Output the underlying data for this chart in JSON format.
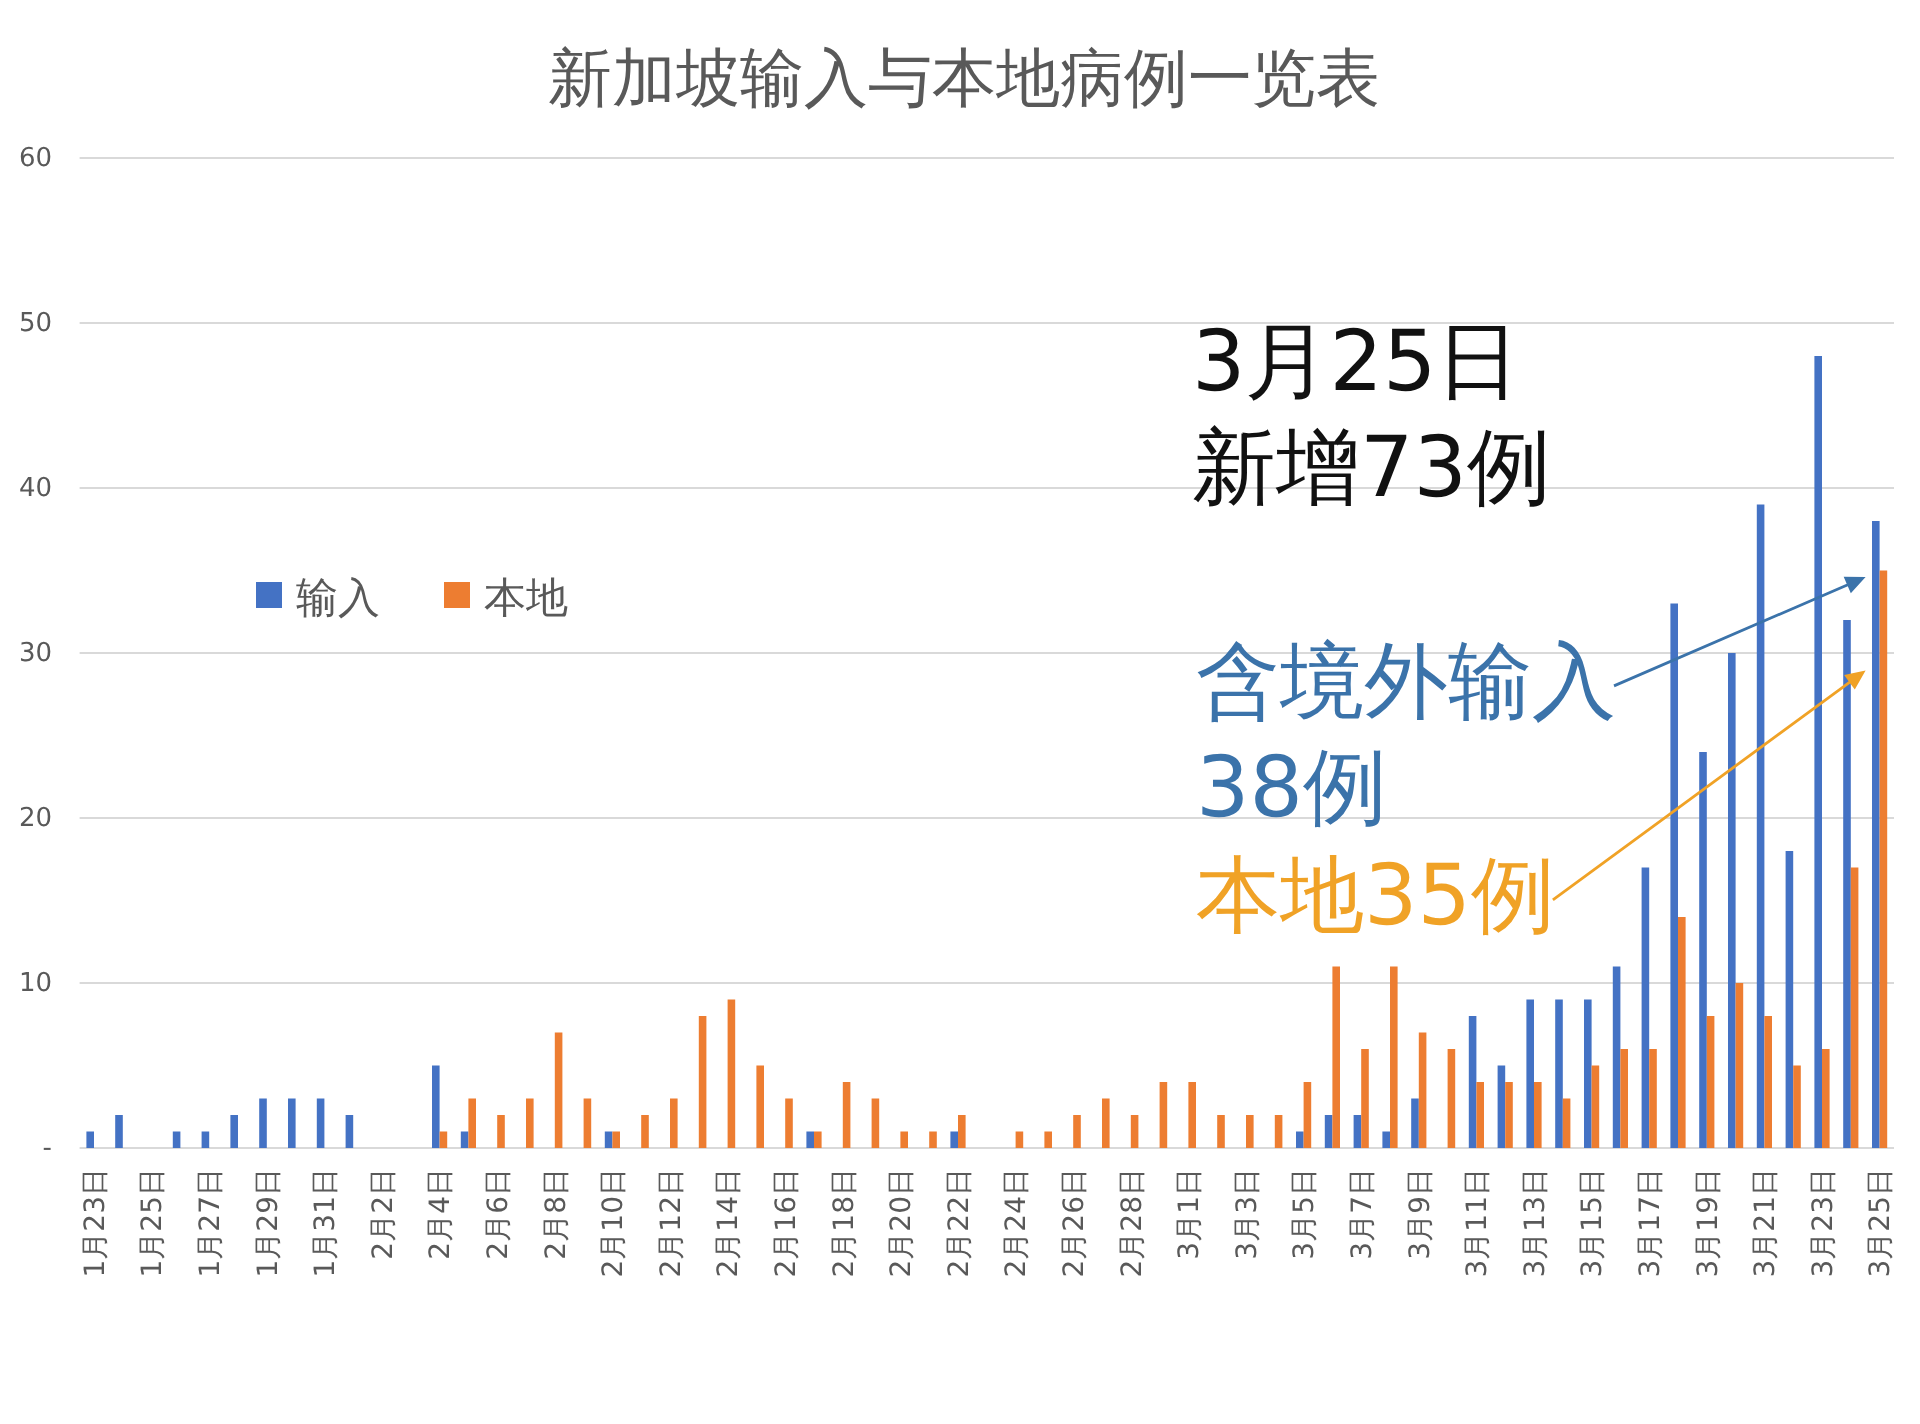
{
  "chart_data": {
    "type": "bar",
    "title": "新加坡输入与本地病例一览表",
    "categories": [
      "1月23日",
      null,
      "1月25日",
      null,
      "1月27日",
      null,
      "1月29日",
      null,
      "1月31日",
      null,
      "2月2日",
      null,
      "2月4日",
      null,
      "2月6日",
      null,
      "2月8日",
      null,
      "2月10日",
      null,
      "2月12日",
      null,
      "2月14日",
      null,
      "2月16日",
      null,
      "2月18日",
      null,
      "2月20日",
      null,
      "2月22日",
      null,
      "2月24日",
      null,
      "2月26日",
      null,
      "2月28日",
      null,
      "3月1日",
      null,
      "3月3日",
      null,
      "3月5日",
      null,
      "3月7日",
      null,
      "3月9日",
      null,
      "3月11日",
      null,
      "3月13日",
      null,
      "3月15日",
      null,
      "3月17日",
      null,
      "3月19日",
      null,
      "3月21日",
      null,
      "3月23日",
      null,
      "3月25日"
    ],
    "series": [
      {
        "name": "输入",
        "color": "#4472c4",
        "values": [
          1,
          2,
          0,
          1,
          1,
          2,
          3,
          3,
          3,
          2,
          0,
          0,
          5,
          1,
          0,
          0,
          0,
          0,
          1,
          0,
          0,
          0,
          0,
          0,
          0,
          1,
          0,
          0,
          0,
          0,
          1,
          0,
          0,
          0,
          0,
          0,
          0,
          0,
          0,
          0,
          0,
          0,
          1,
          2,
          2,
          1,
          3,
          0,
          8,
          5,
          9,
          9,
          9,
          11,
          17,
          33,
          24,
          30,
          39,
          18,
          48,
          32,
          38
        ]
      },
      {
        "name": "本地",
        "color": "#ed7d31",
        "values": [
          0,
          0,
          0,
          0,
          0,
          0,
          0,
          0,
          0,
          0,
          0,
          0,
          1,
          3,
          2,
          3,
          7,
          3,
          1,
          2,
          3,
          8,
          9,
          5,
          3,
          1,
          4,
          3,
          1,
          1,
          2,
          0,
          1,
          1,
          2,
          3,
          2,
          4,
          4,
          2,
          2,
          2,
          4,
          11,
          6,
          11,
          7,
          6,
          4,
          4,
          4,
          3,
          5,
          6,
          6,
          14,
          8,
          10,
          8,
          5,
          6,
          17,
          35
        ]
      }
    ],
    "ylim": [
      0,
      60
    ],
    "yticks": [
      {
        "value": 0,
        "label": "-"
      },
      10,
      20,
      30,
      40,
      50,
      60
    ],
    "grid": "y",
    "legend": "left",
    "annotations": [
      "3月25日新增73例",
      "含境外输入38例",
      "本地35例"
    ]
  }
}
